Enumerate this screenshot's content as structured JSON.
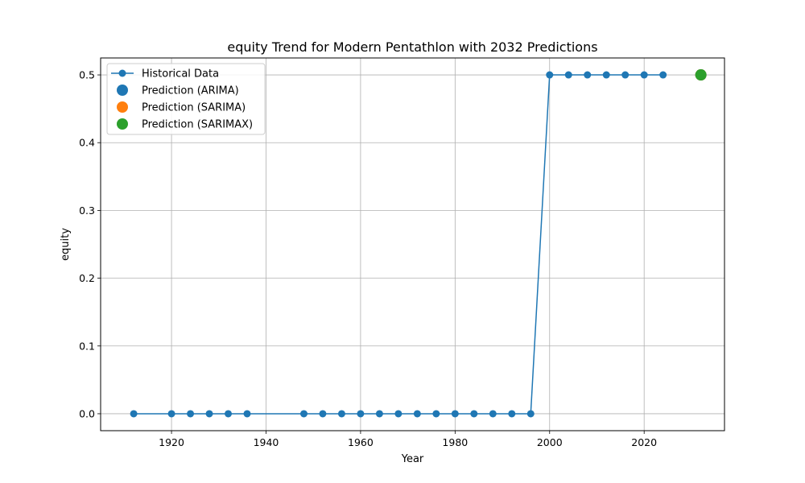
{
  "chart_data": {
    "type": "line",
    "title": "equity Trend for Modern Pentathlon with 2032 Predictions",
    "xlabel": "Year",
    "ylabel": "equity",
    "xlim": [
      1905,
      2037
    ],
    "ylim": [
      -0.025,
      0.525
    ],
    "xticks": [
      1920,
      1940,
      1960,
      1980,
      2000,
      2020
    ],
    "yticks": [
      0.0,
      0.1,
      0.2,
      0.3,
      0.4,
      0.5
    ],
    "grid": true,
    "legend_position": "top-left",
    "series": [
      {
        "name": "Historical Data",
        "kind": "line",
        "color": "#1f77b4",
        "x": [
          1912,
          1920,
          1924,
          1928,
          1932,
          1936,
          1948,
          1952,
          1956,
          1960,
          1964,
          1968,
          1972,
          1976,
          1980,
          1984,
          1988,
          1992,
          1996,
          2000,
          2004,
          2008,
          2012,
          2016,
          2020,
          2024
        ],
        "y": [
          0,
          0,
          0,
          0,
          0,
          0,
          0,
          0,
          0,
          0,
          0,
          0,
          0,
          0,
          0,
          0,
          0,
          0,
          0,
          0.5,
          0.5,
          0.5,
          0.5,
          0.5,
          0.5,
          0.5
        ]
      },
      {
        "name": "Prediction (ARIMA)",
        "kind": "scatter",
        "color": "#1f77b4",
        "x": [
          2032
        ],
        "y": [
          0.5
        ]
      },
      {
        "name": "Prediction (SARIMA)",
        "kind": "scatter",
        "color": "#ff7f0e",
        "x": [
          2032
        ],
        "y": [
          0.5
        ]
      },
      {
        "name": "Prediction (SARIMAX)",
        "kind": "scatter",
        "color": "#2ca02c",
        "x": [
          2032
        ],
        "y": [
          0.5
        ]
      }
    ]
  }
}
